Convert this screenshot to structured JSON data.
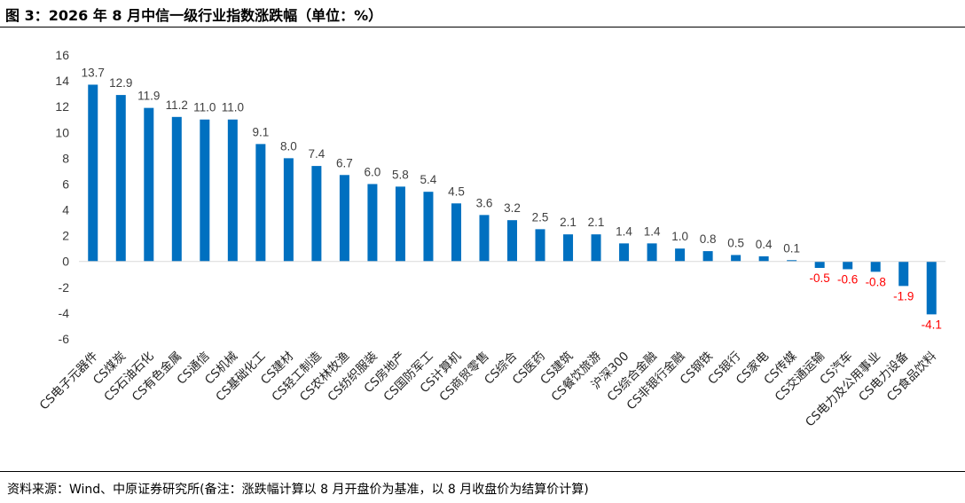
{
  "title": "图 3：2026 年 8 月中信一级行业指数涨跌幅（单位：%）",
  "source": "资料来源：Wind、中原证券研究所(备注：涨跌幅计算以 8 月开盘价为基准，以 8 月收盘价为结算价计算)",
  "colors": {
    "bar": "#0070c0",
    "positive_label": "#404040",
    "negative_label": "#ff0000"
  },
  "chart_data": {
    "type": "bar",
    "title": "",
    "xlabel": "",
    "ylabel": "",
    "ylim": [
      -6,
      16
    ],
    "yticks": [
      16,
      14,
      12,
      10,
      8,
      6,
      4,
      2,
      0,
      -2,
      -4,
      -6
    ],
    "grid": false,
    "legend": "none",
    "categories": [
      "CS电子元器件",
      "CS煤炭",
      "CS石油石化",
      "CS有色金属",
      "CS通信",
      "CS机械",
      "CS基础化工",
      "CS建材",
      "CS轻工制造",
      "CS农林牧渔",
      "CS纺织服装",
      "CS房地产",
      "CS国防军工",
      "CS计算机",
      "CS商贸零售",
      "CS综合",
      "CS医药",
      "CS建筑",
      "CS餐饮旅游",
      "沪深300",
      "CS综合金融",
      "CS非银行金融",
      "CS钢铁",
      "CS银行",
      "CS家电",
      "CS传媒",
      "CS交通运输",
      "CS汽车",
      "CS电力及公用事业",
      "CS电力设备",
      "CS食品饮料"
    ],
    "values": [
      13.7,
      12.9,
      11.9,
      11.2,
      11.0,
      11.0,
      9.1,
      8.0,
      7.4,
      6.7,
      6.0,
      5.8,
      5.4,
      4.5,
      3.6,
      3.2,
      2.5,
      2.1,
      2.1,
      1.4,
      1.4,
      1.0,
      0.8,
      0.5,
      0.4,
      0.1,
      -0.5,
      -0.6,
      -0.8,
      -1.9,
      -4.1
    ]
  }
}
